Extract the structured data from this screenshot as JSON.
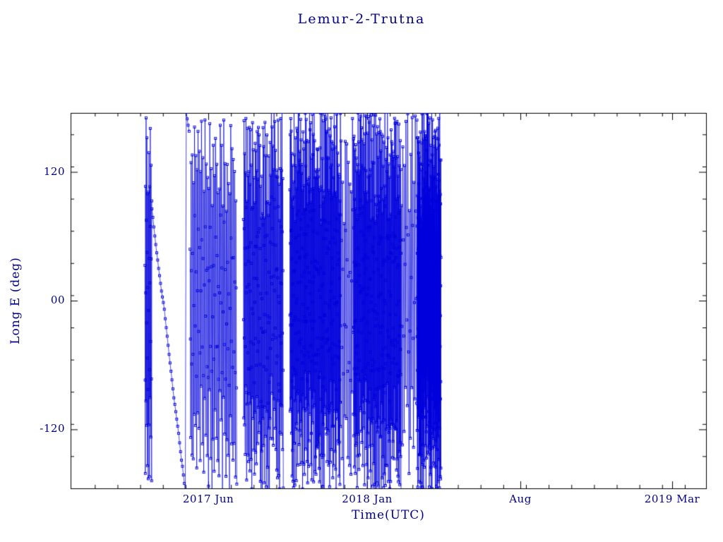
{
  "chart_data": {
    "type": "line",
    "title": "Lemur-2-Trutna",
    "xlabel": "Time(UTC)",
    "ylabel": "Long E (deg)",
    "series_color": "#0000dd",
    "axis_color": "#000000",
    "label_color": "#00008b",
    "background": "#ffffff",
    "ylim": [
      -175,
      175
    ],
    "wrap": [
      -180,
      180
    ],
    "legend": "none",
    "grid": false,
    "marker": "open-square",
    "marker_size": 3,
    "y_ticks": [
      {
        "label": "120",
        "value": 120
      },
      {
        "label": "00",
        "value": 0
      },
      {
        "label": "-120",
        "value": -120
      }
    ],
    "y_minor_step": 30,
    "x_ticks": [
      {
        "label": "2017 Jun",
        "f": 0.2167
      },
      {
        "label": "2018 Jan",
        "f": 0.4667
      },
      {
        "label": "Aug",
        "f": 0.7078
      },
      {
        "label": "2019 Mar",
        "f": 0.9467
      }
    ],
    "x_minor_step_f": 0.03571,
    "data_start_f": 0.117,
    "data_end_f": 0.583,
    "seed": 1337,
    "lon_initial": 140,
    "segments": [
      {
        "start": 0.117,
        "end": 0.128,
        "dt": 0.0003,
        "dlon": -97,
        "noise": 16
      },
      {
        "start": 0.128,
        "end": 0.188,
        "dt": 0.0015,
        "dlon": -7,
        "noise": 2
      },
      {
        "start": 0.188,
        "end": 0.262,
        "dt": 0.0005,
        "dlon": -97,
        "noise": 18
      },
      {
        "start": 0.272,
        "end": 0.335,
        "dt": 0.00028,
        "dlon": -97,
        "noise": 18
      },
      {
        "start": 0.345,
        "end": 0.425,
        "dt": 0.0002,
        "dlon": -97,
        "noise": 22
      },
      {
        "start": 0.425,
        "end": 0.445,
        "dt": 0.0006,
        "dlon": -97,
        "noise": 18
      },
      {
        "start": 0.445,
        "end": 0.52,
        "dt": 0.0002,
        "dlon": -97,
        "noise": 22
      },
      {
        "start": 0.52,
        "end": 0.545,
        "dt": 0.0007,
        "dlon": -97,
        "noise": 18
      },
      {
        "start": 0.545,
        "end": 0.583,
        "dt": 0.00012,
        "dlon": -97,
        "noise": 25
      }
    ]
  }
}
